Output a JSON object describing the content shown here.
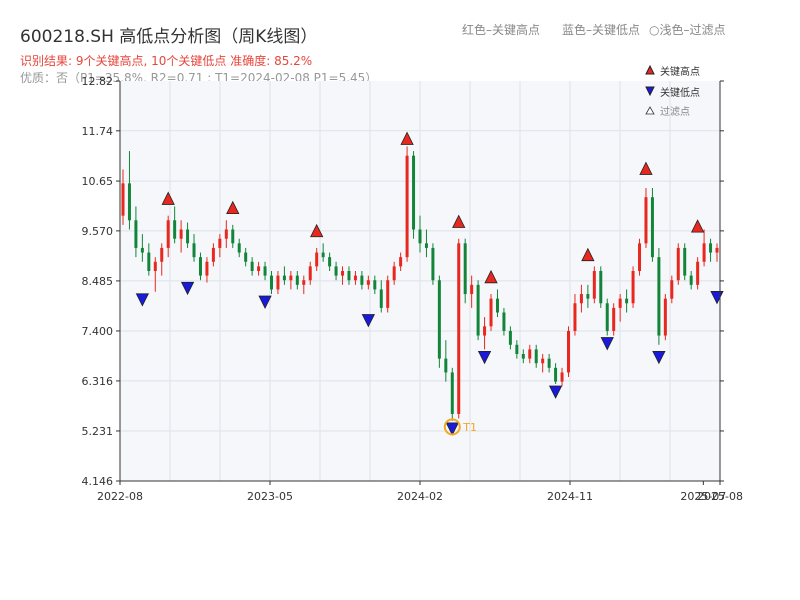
{
  "title": "600218.SH 高低点分析图（周K线图）",
  "header_legend": {
    "red": "红色–关键高点",
    "blue": "蓝色–关键低点",
    "light": "○浅色–过滤点"
  },
  "subtitle_result": "识别结果: 9个关键高点, 10个关键低点  准确度: 85.2%",
  "subtitle_quality": "优质：否（P1=35.8%, R2=0.71 ; T1=2024-02-08 P1=5.45）",
  "colors": {
    "up": "#e8271f",
    "down": "#13853a",
    "high_marker": "#e8271f",
    "low_marker": "#1a1adb",
    "t1_ring": "#f5a623",
    "plot_bg": "#f5f7fa",
    "grid": "#dde3ea"
  },
  "chart_data": {
    "type": "candlestick",
    "ylim": [
      4.146,
      12.82
    ],
    "yticks": [
      "4.146",
      "5.231",
      "6.316",
      "7.400",
      "8.485",
      "9.570",
      "10.65",
      "11.74",
      "12.82"
    ],
    "x_range": [
      "2022-08",
      "2025-08"
    ],
    "xticks": [
      "2022-08",
      "2023-05",
      "2024-02",
      "2024-11",
      "2025-07",
      "2025-08"
    ],
    "legend": {
      "high": "关键高点",
      "low": "关键低点",
      "filtered": "过滤点"
    },
    "ohlc": [
      [
        9.9,
        10.9,
        9.7,
        10.6
      ],
      [
        10.6,
        11.3,
        9.6,
        9.8
      ],
      [
        9.8,
        10.1,
        9.0,
        9.2
      ],
      [
        9.2,
        9.5,
        8.9,
        9.1
      ],
      [
        9.1,
        9.3,
        8.6,
        8.7
      ],
      [
        8.7,
        9.0,
        8.25,
        8.9
      ],
      [
        8.9,
        9.3,
        8.6,
        9.2
      ],
      [
        9.2,
        9.9,
        9.0,
        9.8
      ],
      [
        9.8,
        10.1,
        9.3,
        9.4
      ],
      [
        9.4,
        9.8,
        9.1,
        9.6
      ],
      [
        9.6,
        9.75,
        9.2,
        9.3
      ],
      [
        9.3,
        9.5,
        8.9,
        9.0
      ],
      [
        9.0,
        9.1,
        8.5,
        8.6
      ],
      [
        8.6,
        9.0,
        8.45,
        8.9
      ],
      [
        8.9,
        9.3,
        8.8,
        9.2
      ],
      [
        9.2,
        9.5,
        9.0,
        9.4
      ],
      [
        9.4,
        9.8,
        9.2,
        9.6
      ],
      [
        9.6,
        9.7,
        9.2,
        9.3
      ],
      [
        9.3,
        9.4,
        9.0,
        9.1
      ],
      [
        9.1,
        9.2,
        8.8,
        8.9
      ],
      [
        8.9,
        9.0,
        8.6,
        8.7
      ],
      [
        8.7,
        8.9,
        8.6,
        8.8
      ],
      [
        8.8,
        8.9,
        8.5,
        8.6
      ],
      [
        8.6,
        8.7,
        8.2,
        8.3
      ],
      [
        8.3,
        8.7,
        8.2,
        8.6
      ],
      [
        8.6,
        8.8,
        8.4,
        8.5
      ],
      [
        8.5,
        8.7,
        8.3,
        8.6
      ],
      [
        8.6,
        8.7,
        8.3,
        8.4
      ],
      [
        8.4,
        8.6,
        8.2,
        8.5
      ],
      [
        8.5,
        8.9,
        8.4,
        8.8
      ],
      [
        8.8,
        9.2,
        8.7,
        9.1
      ],
      [
        9.1,
        9.3,
        8.9,
        9.0
      ],
      [
        9.0,
        9.1,
        8.7,
        8.8
      ],
      [
        8.8,
        8.9,
        8.5,
        8.6
      ],
      [
        8.6,
        8.8,
        8.4,
        8.7
      ],
      [
        8.7,
        8.8,
        8.4,
        8.5
      ],
      [
        8.5,
        8.7,
        8.4,
        8.6
      ],
      [
        8.6,
        8.7,
        8.3,
        8.4
      ],
      [
        8.4,
        8.6,
        8.3,
        8.5
      ],
      [
        8.5,
        8.6,
        8.2,
        8.3
      ],
      [
        8.3,
        8.5,
        7.8,
        7.9
      ],
      [
        7.9,
        8.6,
        7.8,
        8.5
      ],
      [
        8.5,
        8.9,
        8.4,
        8.8
      ],
      [
        8.8,
        9.1,
        8.7,
        9.0
      ],
      [
        9.0,
        11.4,
        8.9,
        11.2
      ],
      [
        11.2,
        11.3,
        9.4,
        9.6
      ],
      [
        9.6,
        9.9,
        9.1,
        9.3
      ],
      [
        9.3,
        9.6,
        9.0,
        9.2
      ],
      [
        9.2,
        9.3,
        8.4,
        8.5
      ],
      [
        8.5,
        8.6,
        6.6,
        6.8
      ],
      [
        6.8,
        7.2,
        6.3,
        6.5
      ],
      [
        6.5,
        6.6,
        5.45,
        5.6
      ],
      [
        5.6,
        9.4,
        5.5,
        9.3
      ],
      [
        9.3,
        9.4,
        8.0,
        8.2
      ],
      [
        8.2,
        8.6,
        7.9,
        8.4
      ],
      [
        8.4,
        8.5,
        7.2,
        7.3
      ],
      [
        7.3,
        7.7,
        7.0,
        7.5
      ],
      [
        7.5,
        8.2,
        7.4,
        8.1
      ],
      [
        8.1,
        8.3,
        7.7,
        7.8
      ],
      [
        7.8,
        7.9,
        7.3,
        7.4
      ],
      [
        7.4,
        7.5,
        7.0,
        7.1
      ],
      [
        7.1,
        7.2,
        6.8,
        6.9
      ],
      [
        6.9,
        7.0,
        6.7,
        6.8
      ],
      [
        6.8,
        7.1,
        6.7,
        7.0
      ],
      [
        7.0,
        7.1,
        6.6,
        6.7
      ],
      [
        6.7,
        6.9,
        6.5,
        6.8
      ],
      [
        6.8,
        6.9,
        6.5,
        6.6
      ],
      [
        6.6,
        6.7,
        6.25,
        6.3
      ],
      [
        6.3,
        6.6,
        6.2,
        6.5
      ],
      [
        6.5,
        7.5,
        6.4,
        7.4
      ],
      [
        7.4,
        8.2,
        7.3,
        8.0
      ],
      [
        8.0,
        8.4,
        7.8,
        8.2
      ],
      [
        8.2,
        8.4,
        7.9,
        8.1
      ],
      [
        8.1,
        8.8,
        8.0,
        8.7
      ],
      [
        8.7,
        8.8,
        7.9,
        8.0
      ],
      [
        8.0,
        8.1,
        7.3,
        7.4
      ],
      [
        7.4,
        8.0,
        7.3,
        7.9
      ],
      [
        7.9,
        8.2,
        7.6,
        8.1
      ],
      [
        8.1,
        8.3,
        7.8,
        8.0
      ],
      [
        8.0,
        8.8,
        7.9,
        8.7
      ],
      [
        8.7,
        9.4,
        8.6,
        9.3
      ],
      [
        9.3,
        10.5,
        9.2,
        10.3
      ],
      [
        10.3,
        10.5,
        8.9,
        9.0
      ],
      [
        9.0,
        9.2,
        7.1,
        7.3
      ],
      [
        7.3,
        8.2,
        7.2,
        8.1
      ],
      [
        8.1,
        8.6,
        8.0,
        8.5
      ],
      [
        8.5,
        9.3,
        8.4,
        9.2
      ],
      [
        9.2,
        9.3,
        8.5,
        8.6
      ],
      [
        8.6,
        8.7,
        8.3,
        8.4
      ],
      [
        8.4,
        9.0,
        8.3,
        8.9
      ],
      [
        8.9,
        9.6,
        8.8,
        9.3
      ],
      [
        9.3,
        9.4,
        8.9,
        9.1
      ],
      [
        9.1,
        9.3,
        8.9,
        9.2
      ]
    ],
    "highs": [
      {
        "i": 7,
        "v": 10.1
      },
      {
        "i": 17,
        "v": 9.9
      },
      {
        "i": 30,
        "v": 9.4
      },
      {
        "i": 44,
        "v": 11.4
      },
      {
        "i": 52,
        "v": 9.6
      },
      {
        "i": 57,
        "v": 8.4
      },
      {
        "i": 72,
        "v": 8.88
      },
      {
        "i": 81,
        "v": 10.75
      },
      {
        "i": 89,
        "v": 9.5
      }
    ],
    "lows": [
      {
        "i": 3,
        "v": 8.25
      },
      {
        "i": 10,
        "v": 8.5
      },
      {
        "i": 22,
        "v": 8.2
      },
      {
        "i": 38,
        "v": 7.8
      },
      {
        "i": 51,
        "v": 5.45
      },
      {
        "i": 56,
        "v": 7.0
      },
      {
        "i": 67,
        "v": 6.25
      },
      {
        "i": 75,
        "v": 7.3
      },
      {
        "i": 83,
        "v": 7.0
      },
      {
        "i": 92,
        "v": 8.3
      }
    ],
    "t1": {
      "i": 51,
      "v": 5.45,
      "label": "T1"
    }
  }
}
